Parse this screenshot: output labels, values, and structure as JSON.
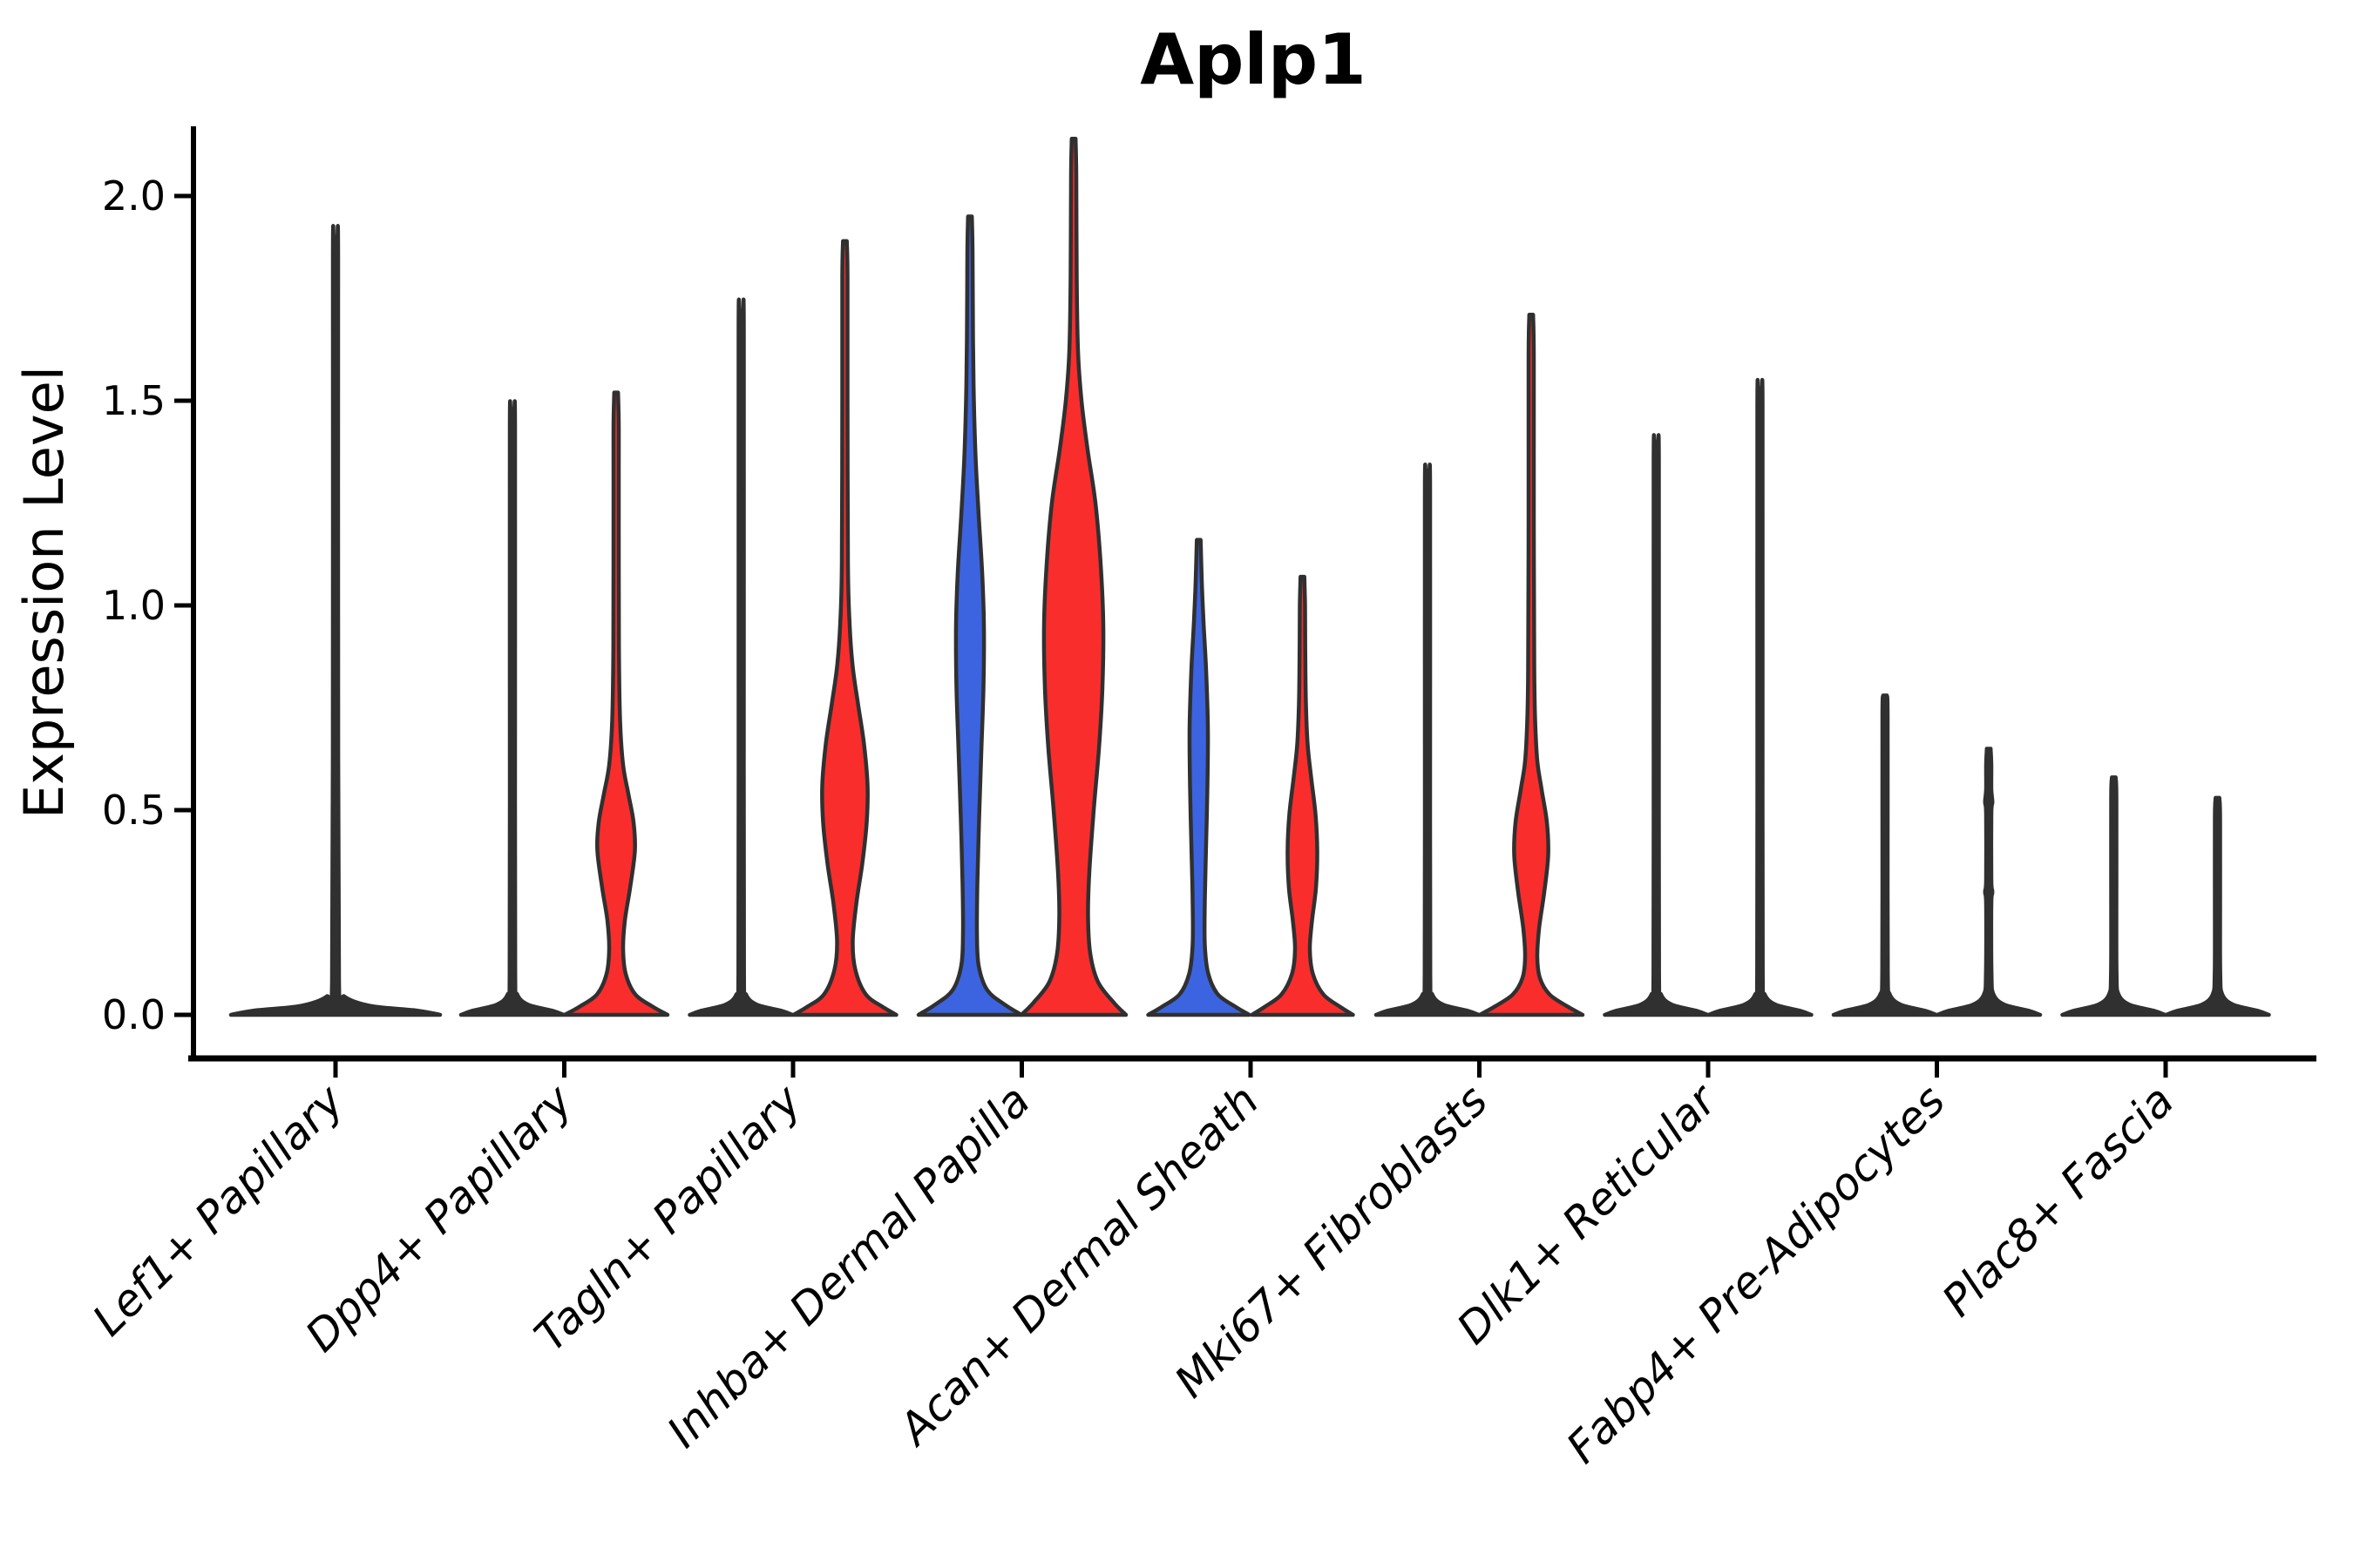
{
  "page": {
    "background": "#ffffff"
  },
  "chart_data": {
    "type": "violin",
    "title": "Aplp1",
    "ylabel": "Expression Level",
    "xlabel": "",
    "grid": false,
    "legend": "none",
    "ylim": [
      -0.11,
      2.17
    ],
    "yticks": [
      {
        "value": 0.0,
        "label": "0.0"
      },
      {
        "value": 0.5,
        "label": "0.5"
      },
      {
        "value": 1.0,
        "label": "1.0"
      },
      {
        "value": 1.5,
        "label": "1.5"
      },
      {
        "value": 2.0,
        "label": "2.0"
      }
    ],
    "categories": [
      "Lef1+ Papillary",
      "Dpp4+ Papillary",
      "Tagln+ Papillary",
      "Inhba+ Dermal Papilla",
      "Acan+ Dermal Sheath",
      "Mki67+ Fibroblasts",
      "Dlk1+ Reticular",
      "Fabp4+ Pre-Adipocytes",
      "Plac8+ Fascia"
    ],
    "colors": {
      "group_blue": "#3c64e1",
      "group_red": "#fa2d2d",
      "collapsed_dark": "#303030",
      "outline": "#303030",
      "axis": "#000000",
      "text": "#000000"
    },
    "violins": [
      {
        "category_index": 0,
        "position": "center",
        "fill": "collapsed_dark",
        "max_expression": 1.9,
        "profile": [
          [
            0,
            120
          ],
          [
            0.01,
            95
          ],
          [
            0.022,
            40
          ],
          [
            0.045,
            10
          ],
          [
            0.08,
            4
          ],
          [
            0.95,
            3
          ],
          [
            1.84,
            3
          ],
          [
            1.9,
            2.2
          ]
        ]
      },
      {
        "category_index": 1,
        "position": "left",
        "fill": "collapsed_dark",
        "max_expression": 1.48,
        "profile": [
          [
            0,
            59
          ],
          [
            0.01,
            46
          ],
          [
            0.025,
            18
          ],
          [
            0.05,
            5.5
          ],
          [
            0.1,
            3.2
          ],
          [
            0.74,
            3
          ],
          [
            1.43,
            3
          ],
          [
            1.48,
            2.2
          ]
        ]
      },
      {
        "category_index": 1,
        "position": "right",
        "fill": "group_red",
        "max_expression": 1.52,
        "profile": [
          [
            0,
            59
          ],
          [
            0.02,
            42
          ],
          [
            0.05,
            22
          ],
          [
            0.1,
            11
          ],
          [
            0.16,
            8
          ],
          [
            0.23,
            10
          ],
          [
            0.31,
            16
          ],
          [
            0.4,
            21.5
          ],
          [
            0.47,
            20
          ],
          [
            0.54,
            14
          ],
          [
            0.61,
            8
          ],
          [
            0.72,
            4.5
          ],
          [
            0.9,
            3.2
          ],
          [
            1.3,
            3
          ],
          [
            1.44,
            3
          ],
          [
            1.52,
            2.2
          ]
        ]
      },
      {
        "category_index": 2,
        "position": "left",
        "fill": "collapsed_dark",
        "max_expression": 1.72,
        "profile": [
          [
            0,
            59
          ],
          [
            0.01,
            46
          ],
          [
            0.025,
            18
          ],
          [
            0.05,
            5.5
          ],
          [
            0.1,
            3.2
          ],
          [
            0.86,
            3
          ],
          [
            1.67,
            3
          ],
          [
            1.72,
            2.2
          ]
        ]
      },
      {
        "category_index": 2,
        "position": "right",
        "fill": "group_red",
        "max_expression": 1.89,
        "profile": [
          [
            0,
            59
          ],
          [
            0.02,
            43
          ],
          [
            0.05,
            24
          ],
          [
            0.11,
            12
          ],
          [
            0.18,
            9
          ],
          [
            0.27,
            13
          ],
          [
            0.37,
            20
          ],
          [
            0.47,
            25
          ],
          [
            0.56,
            26
          ],
          [
            0.66,
            22
          ],
          [
            0.76,
            15
          ],
          [
            0.85,
            9
          ],
          [
            0.95,
            5.5
          ],
          [
            1.1,
            3.5
          ],
          [
            1.5,
            3
          ],
          [
            1.8,
            3
          ],
          [
            1.89,
            2.2
          ]
        ]
      },
      {
        "category_index": 3,
        "position": "left",
        "fill": "group_blue",
        "max_expression": 1.95,
        "profile": [
          [
            0,
            59
          ],
          [
            0.025,
            40
          ],
          [
            0.06,
            20
          ],
          [
            0.12,
            10
          ],
          [
            0.2,
            8
          ],
          [
            0.32,
            8.5
          ],
          [
            0.48,
            10.5
          ],
          [
            0.64,
            13
          ],
          [
            0.8,
            15.5
          ],
          [
            0.95,
            16
          ],
          [
            1.08,
            14
          ],
          [
            1.22,
            10
          ],
          [
            1.36,
            6.5
          ],
          [
            1.5,
            4.5
          ],
          [
            1.65,
            3.5
          ],
          [
            1.86,
            3
          ],
          [
            1.95,
            2.2
          ]
        ]
      },
      {
        "category_index": 3,
        "position": "right",
        "fill": "group_red",
        "max_expression": 2.14,
        "profile": [
          [
            0,
            60
          ],
          [
            0.03,
            46
          ],
          [
            0.08,
            28
          ],
          [
            0.15,
            19
          ],
          [
            0.24,
            16.5
          ],
          [
            0.35,
            18
          ],
          [
            0.5,
            23
          ],
          [
            0.65,
            29
          ],
          [
            0.8,
            33
          ],
          [
            0.95,
            34
          ],
          [
            1.1,
            31
          ],
          [
            1.25,
            25
          ],
          [
            1.38,
            16
          ],
          [
            1.5,
            9
          ],
          [
            1.62,
            5
          ],
          [
            1.8,
            3.5
          ],
          [
            2.05,
            3
          ],
          [
            2.14,
            2.2
          ]
        ]
      },
      {
        "category_index": 4,
        "position": "left",
        "fill": "group_blue",
        "max_expression": 1.16,
        "profile": [
          [
            0,
            58
          ],
          [
            0.02,
            42
          ],
          [
            0.05,
            22
          ],
          [
            0.1,
            11
          ],
          [
            0.17,
            7
          ],
          [
            0.28,
            7
          ],
          [
            0.42,
            8.5
          ],
          [
            0.56,
            10
          ],
          [
            0.7,
            10.5
          ],
          [
            0.84,
            8.5
          ],
          [
            0.96,
            5.5
          ],
          [
            1.06,
            3.5
          ],
          [
            1.16,
            2.2
          ]
        ]
      },
      {
        "category_index": 4,
        "position": "right",
        "fill": "group_red",
        "max_expression": 1.07,
        "profile": [
          [
            0,
            58
          ],
          [
            0.02,
            43
          ],
          [
            0.05,
            24
          ],
          [
            0.1,
            12
          ],
          [
            0.16,
            8.5
          ],
          [
            0.23,
            11
          ],
          [
            0.31,
            15.5
          ],
          [
            0.4,
            17
          ],
          [
            0.49,
            15
          ],
          [
            0.58,
            10
          ],
          [
            0.66,
            6
          ],
          [
            0.76,
            4
          ],
          [
            0.9,
            3.2
          ],
          [
            1.0,
            3
          ],
          [
            1.07,
            2.2
          ]
        ]
      },
      {
        "category_index": 5,
        "position": "left",
        "fill": "collapsed_dark",
        "max_expression": 1.33,
        "profile": [
          [
            0,
            59
          ],
          [
            0.01,
            46
          ],
          [
            0.025,
            18
          ],
          [
            0.05,
            5.5
          ],
          [
            0.1,
            3.2
          ],
          [
            0.66,
            3
          ],
          [
            1.28,
            3
          ],
          [
            1.33,
            2.2
          ]
        ]
      },
      {
        "category_index": 5,
        "position": "right",
        "fill": "group_red",
        "max_expression": 1.71,
        "profile": [
          [
            0,
            59
          ],
          [
            0.02,
            42
          ],
          [
            0.05,
            21
          ],
          [
            0.09,
            10
          ],
          [
            0.14,
            7
          ],
          [
            0.21,
            9
          ],
          [
            0.3,
            15
          ],
          [
            0.39,
            19.5
          ],
          [
            0.47,
            18
          ],
          [
            0.55,
            12
          ],
          [
            0.62,
            7
          ],
          [
            0.72,
            4.5
          ],
          [
            0.85,
            3.5
          ],
          [
            1.2,
            3
          ],
          [
            1.6,
            3
          ],
          [
            1.71,
            2.2
          ]
        ]
      },
      {
        "category_index": 6,
        "position": "left",
        "fill": "collapsed_dark",
        "max_expression": 1.4,
        "profile": [
          [
            0,
            59
          ],
          [
            0.01,
            46
          ],
          [
            0.025,
            18
          ],
          [
            0.05,
            5.5
          ],
          [
            0.1,
            3.2
          ],
          [
            0.7,
            3
          ],
          [
            1.35,
            3
          ],
          [
            1.4,
            2.2
          ]
        ]
      },
      {
        "category_index": 6,
        "position": "right",
        "fill": "collapsed_dark",
        "max_expression": 1.53,
        "profile": [
          [
            0,
            59
          ],
          [
            0.01,
            46
          ],
          [
            0.025,
            18
          ],
          [
            0.05,
            5.5
          ],
          [
            0.1,
            3.2
          ],
          [
            0.76,
            3
          ],
          [
            1.48,
            3
          ],
          [
            1.53,
            2.2
          ]
        ]
      },
      {
        "category_index": 7,
        "position": "left",
        "fill": "collapsed_dark",
        "max_expression": 0.78,
        "profile": [
          [
            0,
            59
          ],
          [
            0.01,
            46
          ],
          [
            0.025,
            18
          ],
          [
            0.05,
            5.5
          ],
          [
            0.1,
            3.2
          ],
          [
            0.39,
            3
          ],
          [
            0.73,
            3
          ],
          [
            0.78,
            2.2
          ]
        ]
      },
      {
        "category_index": 7,
        "position": "right",
        "fill": "collapsed_dark",
        "max_expression": 0.65,
        "profile": [
          [
            0,
            59
          ],
          [
            0.01,
            46
          ],
          [
            0.025,
            18
          ],
          [
            0.05,
            5.5
          ],
          [
            0.1,
            3.2
          ],
          [
            0.27,
            3
          ],
          [
            0.3,
            4.2
          ],
          [
            0.33,
            3
          ],
          [
            0.49,
            3
          ],
          [
            0.52,
            4.2
          ],
          [
            0.55,
            3
          ],
          [
            0.61,
            3
          ],
          [
            0.65,
            2.2
          ]
        ]
      },
      {
        "category_index": 8,
        "position": "left",
        "fill": "collapsed_dark",
        "max_expression": 0.58,
        "profile": [
          [
            0,
            59
          ],
          [
            0.01,
            46
          ],
          [
            0.025,
            18
          ],
          [
            0.05,
            5.5
          ],
          [
            0.1,
            3.2
          ],
          [
            0.29,
            3
          ],
          [
            0.53,
            3
          ],
          [
            0.58,
            2.2
          ]
        ]
      },
      {
        "category_index": 8,
        "position": "right",
        "fill": "collapsed_dark",
        "max_expression": 0.53,
        "profile": [
          [
            0,
            59
          ],
          [
            0.01,
            46
          ],
          [
            0.025,
            18
          ],
          [
            0.05,
            5.5
          ],
          [
            0.1,
            3.2
          ],
          [
            0.26,
            3
          ],
          [
            0.48,
            3
          ],
          [
            0.53,
            2.2
          ]
        ]
      }
    ]
  }
}
